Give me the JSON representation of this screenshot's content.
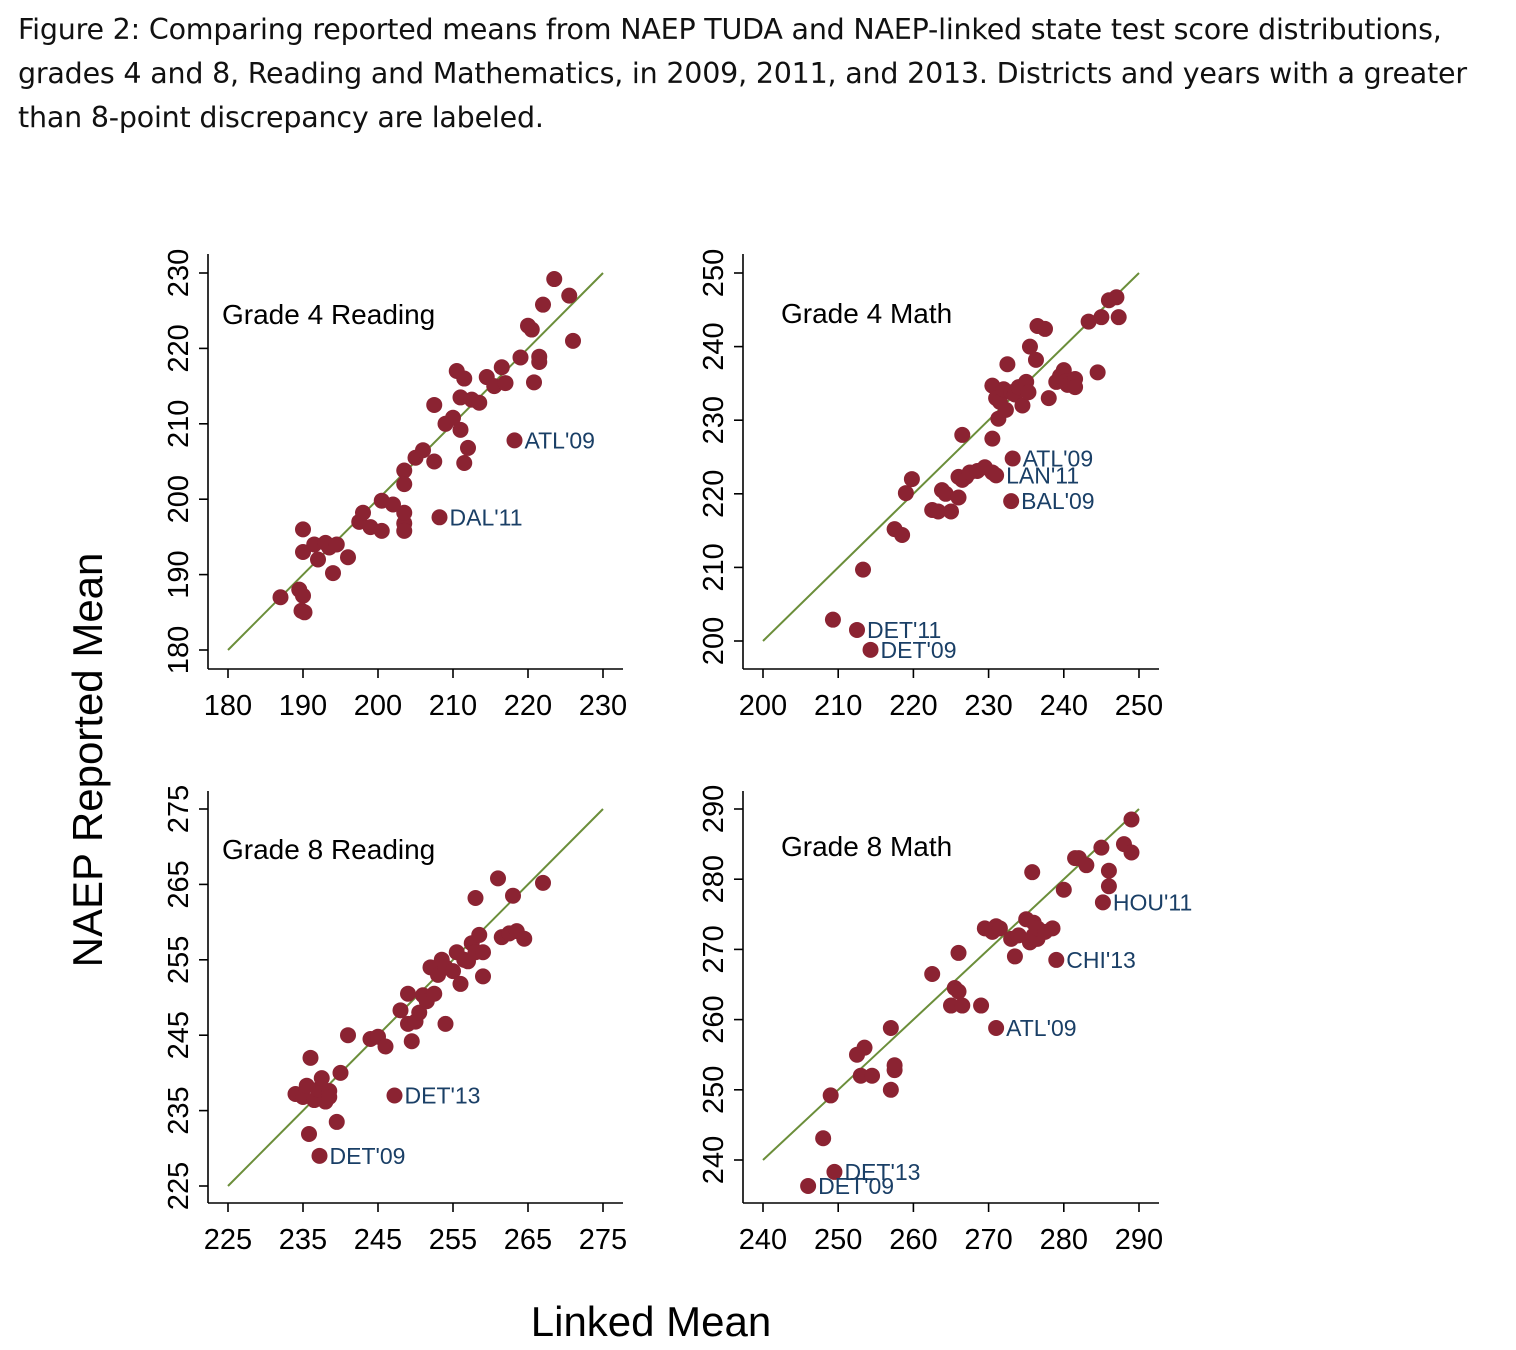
{
  "caption": {
    "line1": "Figure 2: Comparing reported means from NAEP TUDA and NAEP-linked state test score distributions,",
    "line2": "grades 4 and 8, Reading and Mathematics, in 2009, 2011, and 2013. Districts and years with a greater",
    "line3": "than 8-point discrepancy are labeled."
  },
  "colors": {
    "point": "#8b2332",
    "line": "#6b8e3a",
    "label": "#1a3f66",
    "axis": "#000000"
  },
  "chart_data": {
    "type": "scatter",
    "xlabel": "Linked Mean",
    "ylabel": "NAEP Reported Mean",
    "panels": [
      {
        "title": "Grade 4 Reading",
        "xlim": [
          180,
          230
        ],
        "ylim": [
          180,
          230
        ],
        "xticks": [
          180,
          190,
          200,
          210,
          220,
          230
        ],
        "yticks": [
          180,
          190,
          200,
          210,
          220,
          230
        ],
        "reference_line": [
          [
            180,
            180
          ],
          [
            230,
            230
          ]
        ],
        "points": [
          [
            187,
            187
          ],
          [
            189.5,
            188
          ],
          [
            190,
            187.2
          ],
          [
            189.8,
            185.2
          ],
          [
            190.2,
            185
          ],
          [
            190,
            193
          ],
          [
            190,
            196
          ],
          [
            191.5,
            194
          ],
          [
            192,
            192
          ],
          [
            193,
            194.2
          ],
          [
            193.5,
            193.6
          ],
          [
            194,
            190.2
          ],
          [
            194.5,
            194
          ],
          [
            196,
            192.3
          ],
          [
            197.5,
            197
          ],
          [
            198,
            198.2
          ],
          [
            199,
            196.3
          ],
          [
            200.5,
            195.8
          ],
          [
            200.5,
            199.8
          ],
          [
            202,
            199.3
          ],
          [
            203.5,
            196.8
          ],
          [
            203.5,
            195.8
          ],
          [
            203.5,
            198.2
          ],
          [
            203.5,
            203.8
          ],
          [
            203.5,
            202
          ],
          [
            205,
            205.5
          ],
          [
            206,
            206.5
          ],
          [
            207.5,
            205
          ],
          [
            207.5,
            212.5
          ],
          [
            209,
            210
          ],
          [
            210,
            210.8
          ],
          [
            210.5,
            217
          ],
          [
            211,
            209.2
          ],
          [
            211,
            213.5
          ],
          [
            211.5,
            216
          ],
          [
            211.5,
            204.8
          ],
          [
            212,
            206.8
          ],
          [
            212.5,
            213.2
          ],
          [
            213.5,
            212.8
          ],
          [
            214.5,
            216.2
          ],
          [
            215.5,
            215
          ],
          [
            216.5,
            217.5
          ],
          [
            217,
            215.4
          ],
          [
            219,
            218.8
          ],
          [
            220,
            223
          ],
          [
            220.5,
            222.5
          ],
          [
            220.8,
            215.5
          ],
          [
            221.5,
            218.2
          ],
          [
            221.5,
            218.9
          ],
          [
            222,
            225.8
          ],
          [
            223.5,
            229.2
          ],
          [
            225.5,
            227
          ],
          [
            226,
            221
          ],
          [
            218.2,
            207.8
          ],
          [
            208.2,
            197.6
          ]
        ],
        "labels": [
          {
            "text": "ATL'09",
            "x": 218.2,
            "y": 207.8
          },
          {
            "text": "DAL'11",
            "x": 208.2,
            "y": 197.6
          }
        ]
      },
      {
        "title": "Grade 4 Math",
        "xlim": [
          200,
          250
        ],
        "ylim": [
          200,
          250
        ],
        "xticks": [
          200,
          210,
          220,
          230,
          240,
          250
        ],
        "yticks": [
          200,
          210,
          220,
          230,
          240,
          250
        ],
        "reference_line": [
          [
            200,
            200
          ],
          [
            250,
            250
          ]
        ],
        "points": [
          [
            209.3,
            202.9
          ],
          [
            212.5,
            201.5
          ],
          [
            214.3,
            198.8
          ],
          [
            213.3,
            209.7
          ],
          [
            217.5,
            215.2
          ],
          [
            218.5,
            214.4
          ],
          [
            219,
            220.1
          ],
          [
            219.8,
            222.0
          ],
          [
            222.5,
            217.8
          ],
          [
            223.3,
            217.6
          ],
          [
            223.8,
            220.5
          ],
          [
            224.3,
            220.0
          ],
          [
            225,
            217.6
          ],
          [
            226,
            219.5
          ],
          [
            226,
            222.3
          ],
          [
            226.5,
            221.9
          ],
          [
            227,
            222.3
          ],
          [
            227.5,
            222.9
          ],
          [
            228.5,
            223.1
          ],
          [
            229.5,
            223.6
          ],
          [
            230.5,
            222.9
          ],
          [
            226.5,
            228.0
          ],
          [
            230.5,
            227.5
          ],
          [
            230.5,
            234.7
          ],
          [
            231,
            233.0
          ],
          [
            231.3,
            230.2
          ],
          [
            231.5,
            232.5
          ],
          [
            232,
            234.2
          ],
          [
            232.3,
            231.4
          ],
          [
            232.5,
            237.6
          ],
          [
            233,
            233.8
          ],
          [
            233.5,
            233.5
          ],
          [
            234,
            234.5
          ],
          [
            234.5,
            232.0
          ],
          [
            235,
            235.2
          ],
          [
            235.3,
            233.8
          ],
          [
            235.5,
            240.0
          ],
          [
            236.3,
            238.2
          ],
          [
            236.5,
            242.8
          ],
          [
            237.5,
            242.4
          ],
          [
            238,
            233.0
          ],
          [
            239,
            235.2
          ],
          [
            239.5,
            236.0
          ],
          [
            240,
            236.8
          ],
          [
            240.3,
            235.3
          ],
          [
            240.5,
            234.8
          ],
          [
            241.5,
            235.6
          ],
          [
            241.5,
            234.5
          ],
          [
            243.3,
            243.4
          ],
          [
            244.5,
            236.5
          ],
          [
            245,
            244.0
          ],
          [
            246,
            246.3
          ],
          [
            247,
            246.7
          ],
          [
            247.3,
            244.0
          ],
          [
            233.2,
            224.8
          ],
          [
            231.0,
            222.5
          ],
          [
            233.0,
            219.0
          ]
        ],
        "labels": [
          {
            "text": "ATL'09",
            "x": 233.2,
            "y": 224.8
          },
          {
            "text": "LAN'11",
            "x": 231.0,
            "y": 222.5
          },
          {
            "text": "BAL'09",
            "x": 233.0,
            "y": 219.0
          },
          {
            "text": "DET'11",
            "x": 212.5,
            "y": 201.5
          },
          {
            "text": "DET'09",
            "x": 214.3,
            "y": 198.8
          }
        ]
      },
      {
        "title": "Grade 8 Reading",
        "xlim": [
          225,
          275
        ],
        "ylim": [
          225,
          275
        ],
        "xticks": [
          225,
          235,
          245,
          255,
          265,
          275
        ],
        "yticks": [
          225,
          235,
          245,
          255,
          265,
          275
        ],
        "reference_line": [
          [
            225,
            225
          ],
          [
            275,
            275
          ]
        ],
        "points": [
          [
            234,
            237.2
          ],
          [
            235,
            236.8
          ],
          [
            235.5,
            238.3
          ],
          [
            236,
            242
          ],
          [
            236.5,
            236.4
          ],
          [
            237,
            237.8
          ],
          [
            237.5,
            239.3
          ],
          [
            238,
            236.2
          ],
          [
            238.5,
            237.6
          ],
          [
            238.5,
            236.8
          ],
          [
            239.5,
            233.5
          ],
          [
            240,
            240
          ],
          [
            241,
            245
          ],
          [
            244,
            244.5
          ],
          [
            245,
            244.8
          ],
          [
            246,
            243.5
          ],
          [
            248,
            248.3
          ],
          [
            249,
            246.5
          ],
          [
            249,
            250.5
          ],
          [
            249.5,
            244.2
          ],
          [
            250,
            246.8
          ],
          [
            250.5,
            248
          ],
          [
            251,
            250.3
          ],
          [
            251.5,
            249.5
          ],
          [
            252,
            254
          ],
          [
            252.5,
            250.5
          ],
          [
            253,
            253
          ],
          [
            253.5,
            255
          ],
          [
            254,
            246.5
          ],
          [
            254,
            254
          ],
          [
            255,
            253.5
          ],
          [
            255.5,
            256
          ],
          [
            256,
            251.8
          ],
          [
            256.5,
            255
          ],
          [
            257,
            254.8
          ],
          [
            257.5,
            257.2
          ],
          [
            258,
            256
          ],
          [
            258,
            263.2
          ],
          [
            259,
            252.8
          ],
          [
            259,
            256
          ],
          [
            261,
            265.8
          ],
          [
            261.5,
            258
          ],
          [
            262.5,
            258.5
          ],
          [
            263,
            263.5
          ],
          [
            263.5,
            258.8
          ],
          [
            264.5,
            257.8
          ],
          [
            267,
            265.2
          ],
          [
            258.5,
            258.3
          ],
          [
            247.2,
            237.0
          ],
          [
            235.8,
            231.9
          ],
          [
            237.2,
            229.0
          ]
        ],
        "labels": [
          {
            "text": "DET'13",
            "x": 247.2,
            "y": 237.0
          },
          {
            "text": "DET'09",
            "x": 237.2,
            "y": 229.0
          }
        ]
      },
      {
        "title": "Grade 8 Math",
        "xlim": [
          240,
          290
        ],
        "ylim": [
          240,
          290
        ],
        "xticks": [
          240,
          250,
          260,
          270,
          280,
          290
        ],
        "yticks": [
          240,
          250,
          260,
          270,
          280,
          290
        ],
        "reference_line": [
          [
            240,
            240
          ],
          [
            290,
            290
          ]
        ],
        "points": [
          [
            248,
            243.1
          ],
          [
            249,
            249.2
          ],
          [
            252.5,
            255
          ],
          [
            253,
            252
          ],
          [
            253.5,
            256
          ],
          [
            254.5,
            252
          ],
          [
            257,
            258.8
          ],
          [
            257,
            250
          ],
          [
            257.5,
            252.8
          ],
          [
            257.5,
            253.5
          ],
          [
            262.5,
            266.5
          ],
          [
            265,
            262
          ],
          [
            265.5,
            264.5
          ],
          [
            266,
            264
          ],
          [
            266,
            269.5
          ],
          [
            266.5,
            262
          ],
          [
            269,
            262
          ],
          [
            269.5,
            273
          ],
          [
            270.5,
            272.5
          ],
          [
            271,
            273.3
          ],
          [
            271.5,
            273
          ],
          [
            273,
            271.5
          ],
          [
            273.5,
            269
          ],
          [
            274,
            272
          ],
          [
            275,
            274.3
          ],
          [
            275.5,
            271
          ],
          [
            276,
            272
          ],
          [
            276,
            273.8
          ],
          [
            276.5,
            271.5
          ],
          [
            276.5,
            273
          ],
          [
            277.5,
            272.5
          ],
          [
            278.5,
            273
          ],
          [
            275.8,
            281
          ],
          [
            280,
            278.5
          ],
          [
            281.5,
            283
          ],
          [
            282,
            283
          ],
          [
            283,
            282
          ],
          [
            285,
            284.5
          ],
          [
            286,
            281.2
          ],
          [
            286,
            279
          ],
          [
            288,
            285
          ],
          [
            289,
            288.5
          ],
          [
            289,
            283.8
          ],
          [
            285.2,
            276.7
          ],
          [
            279.0,
            268.5
          ],
          [
            271.0,
            258.8
          ],
          [
            249.5,
            238.3
          ],
          [
            246.0,
            236.3
          ]
        ],
        "labels": [
          {
            "text": "HOU'11",
            "x": 285.2,
            "y": 276.7
          },
          {
            "text": "CHI'13",
            "x": 279.0,
            "y": 268.5
          },
          {
            "text": "ATL'09",
            "x": 271.0,
            "y": 258.8
          },
          {
            "text": "DET'13",
            "x": 249.5,
            "y": 238.3
          },
          {
            "text": "DET'09",
            "x": 246.0,
            "y": 236.3
          }
        ]
      }
    ]
  }
}
